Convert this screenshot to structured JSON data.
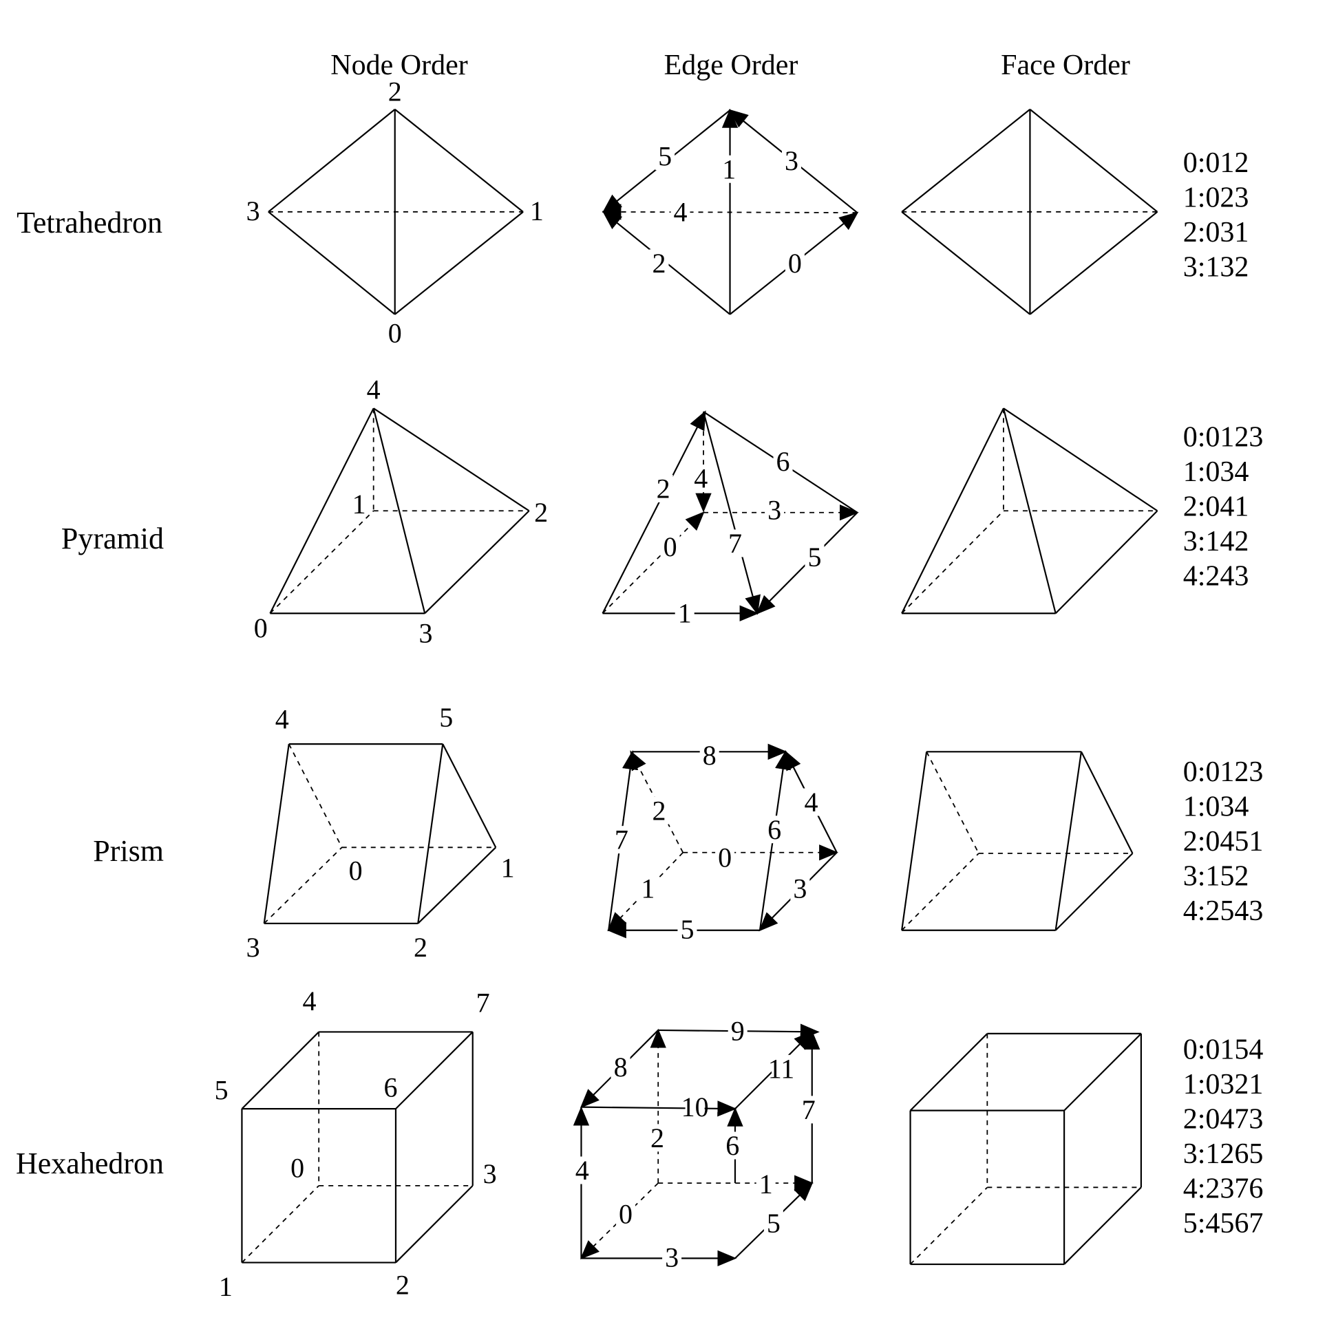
{
  "columns": [
    "Node Order",
    "Edge Order",
    "Face Order"
  ],
  "shapes": [
    {
      "name": "Tetrahedron",
      "nodes": [
        "0",
        "1",
        "2",
        "3"
      ],
      "edges": [
        "0",
        "1",
        "2",
        "3",
        "4",
        "5"
      ],
      "faces": [
        "0:012",
        "1:023",
        "2:031",
        "3:132"
      ]
    },
    {
      "name": "Pyramid",
      "nodes": [
        "0",
        "1",
        "2",
        "3",
        "4"
      ],
      "edges": [
        "0",
        "1",
        "2",
        "3",
        "4",
        "5",
        "6",
        "7"
      ],
      "faces": [
        "0:0123",
        "1:034",
        "2:041",
        "3:142",
        "4:243"
      ]
    },
    {
      "name": "Prism",
      "nodes": [
        "0",
        "1",
        "2",
        "3",
        "4",
        "5"
      ],
      "edges": [
        "0",
        "1",
        "2",
        "3",
        "4",
        "5",
        "6",
        "7",
        "8"
      ],
      "faces": [
        "0:0123",
        "1:034",
        "2:0451",
        "3:152",
        "4:2543"
      ]
    },
    {
      "name": "Hexahedron",
      "nodes": [
        "0",
        "1",
        "2",
        "3",
        "4",
        "5",
        "6",
        "7"
      ],
      "edges": [
        "0",
        "1",
        "2",
        "3",
        "4",
        "5",
        "6",
        "7",
        "8",
        "9",
        "10",
        "11"
      ],
      "faces": [
        "0:0154",
        "1:0321",
        "2:0473",
        "3:1265",
        "4:2376",
        "5:4567"
      ]
    }
  ]
}
